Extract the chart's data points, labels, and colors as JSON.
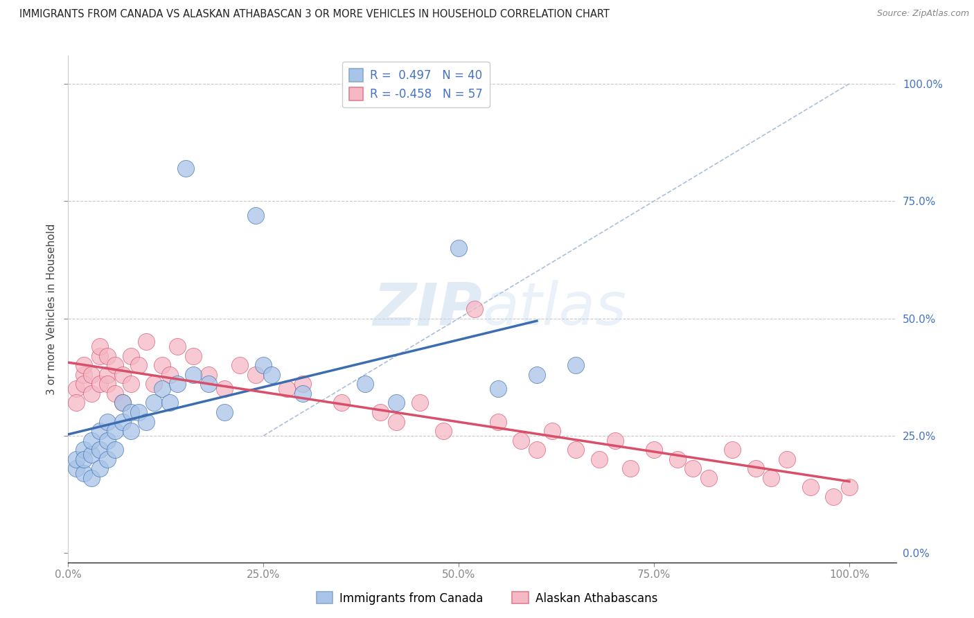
{
  "title": "IMMIGRANTS FROM CANADA VS ALASKAN ATHABASCAN 3 OR MORE VEHICLES IN HOUSEHOLD CORRELATION CHART",
  "source": "Source: ZipAtlas.com",
  "ylabel": "3 or more Vehicles in Household",
  "R1": 0.497,
  "N1": 40,
  "R2": -0.458,
  "N2": 57,
  "color_blue": "#A8C4E8",
  "color_pink": "#F5B8C4",
  "line_color_blue": "#3C6DB0",
  "line_color_pink": "#D94F6A",
  "diag_color": "#A0B8D8",
  "background_color": "#FFFFFF",
  "legend_entry1": "R =  0.497   N = 40",
  "legend_entry2": "R = -0.458   N = 57",
  "legend_label1": "Immigrants from Canada",
  "legend_label2": "Alaskan Athabascans",
  "blue_x": [
    0.01,
    0.01,
    0.02,
    0.02,
    0.02,
    0.03,
    0.03,
    0.03,
    0.04,
    0.04,
    0.04,
    0.05,
    0.05,
    0.05,
    0.06,
    0.06,
    0.07,
    0.07,
    0.08,
    0.08,
    0.09,
    0.1,
    0.11,
    0.12,
    0.13,
    0.14,
    0.15,
    0.16,
    0.18,
    0.2,
    0.24,
    0.25,
    0.26,
    0.3,
    0.38,
    0.42,
    0.5,
    0.55,
    0.6,
    0.65
  ],
  "blue_y": [
    0.18,
    0.2,
    0.17,
    0.22,
    0.2,
    0.16,
    0.21,
    0.24,
    0.18,
    0.22,
    0.26,
    0.2,
    0.24,
    0.28,
    0.22,
    0.26,
    0.28,
    0.32,
    0.3,
    0.26,
    0.3,
    0.28,
    0.32,
    0.35,
    0.32,
    0.36,
    0.82,
    0.38,
    0.36,
    0.3,
    0.72,
    0.4,
    0.38,
    0.34,
    0.36,
    0.32,
    0.65,
    0.35,
    0.38,
    0.4
  ],
  "pink_x": [
    0.01,
    0.01,
    0.02,
    0.02,
    0.02,
    0.03,
    0.03,
    0.04,
    0.04,
    0.04,
    0.05,
    0.05,
    0.05,
    0.06,
    0.06,
    0.07,
    0.07,
    0.08,
    0.08,
    0.09,
    0.1,
    0.11,
    0.12,
    0.13,
    0.14,
    0.16,
    0.18,
    0.2,
    0.22,
    0.24,
    0.28,
    0.3,
    0.35,
    0.4,
    0.42,
    0.45,
    0.48,
    0.52,
    0.55,
    0.58,
    0.6,
    0.62,
    0.65,
    0.68,
    0.7,
    0.72,
    0.75,
    0.78,
    0.8,
    0.82,
    0.85,
    0.88,
    0.9,
    0.92,
    0.95,
    0.98,
    1.0
  ],
  "pink_y": [
    0.35,
    0.32,
    0.38,
    0.36,
    0.4,
    0.34,
    0.38,
    0.42,
    0.36,
    0.44,
    0.38,
    0.42,
    0.36,
    0.4,
    0.34,
    0.38,
    0.32,
    0.42,
    0.36,
    0.4,
    0.45,
    0.36,
    0.4,
    0.38,
    0.44,
    0.42,
    0.38,
    0.35,
    0.4,
    0.38,
    0.35,
    0.36,
    0.32,
    0.3,
    0.28,
    0.32,
    0.26,
    0.52,
    0.28,
    0.24,
    0.22,
    0.26,
    0.22,
    0.2,
    0.24,
    0.18,
    0.22,
    0.2,
    0.18,
    0.16,
    0.22,
    0.18,
    0.16,
    0.2,
    0.14,
    0.12,
    0.14
  ],
  "blue_line_x0": 0.0,
  "blue_line_x1": 0.6,
  "blue_line_y0": 0.175,
  "blue_line_y1": 0.575,
  "pink_line_x0": 0.0,
  "pink_line_x1": 1.0,
  "pink_line_y0": 0.325,
  "pink_line_y1": 0.125,
  "xlim": [
    0.0,
    1.06
  ],
  "ylim": [
    -0.02,
    1.06
  ]
}
